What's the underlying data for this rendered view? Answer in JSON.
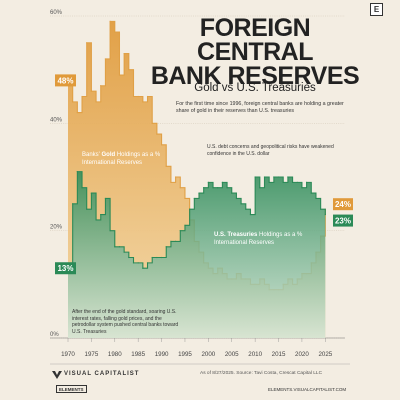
{
  "header": {
    "title_lines": [
      "FOREIGN CENTRAL",
      "BANK RESERVES"
    ],
    "subtitle": "Gold vs U.S. Treasuries",
    "intro": "For the first time since 1996, foreign central banks are holding a greater share of gold in their reserves than U.S. treasuries",
    "badge": "E"
  },
  "annotations": {
    "risk": "U.S. debt concerns and geopolitical risks have weakened confidence in the U.S. dollar",
    "gold_standard": "After the end of the gold standard, soaring U.S. interest rates, falling gold prices, and the petrodollar system pushed central banks toward U.S. Treasuries"
  },
  "series_labels": {
    "gold": "Banks' Gold Holdings as a % International Reserves",
    "gold_bold": "Gold",
    "ust": "U.S. Treasuries Holdings as a % International Reserves",
    "ust_bold": "U.S. Treasuries"
  },
  "footer": {
    "brand": "VISUAL CAPITALIST",
    "elements": "ELEMENTS",
    "elements_url": "ELEMENTS.VISUALCAPITALIST.COM",
    "source": "As of 8/27/2025. Source: Tavi Costa, Crescat Capital LLC"
  },
  "colors": {
    "background": "#f3ede2",
    "gold": "#e0a046",
    "gold_light": "#f2cd8c",
    "ust": "#2b8a57",
    "ust_light": "#b9d8c4",
    "text": "#222222"
  },
  "chart_data": {
    "type": "area",
    "x_ticks": [
      "1970",
      "1975",
      "1980",
      "1985",
      "1990",
      "1995",
      "2000",
      "2005",
      "2010",
      "2015",
      "2020",
      "2025"
    ],
    "y_ticks": [
      "0%",
      "20%",
      "40%",
      "60%"
    ],
    "xlim": [
      1970,
      2026
    ],
    "ylim": [
      0,
      60
    ],
    "grid": true,
    "series": [
      {
        "name": "Gold",
        "color": "#e0a046",
        "x": [
          1970,
          1971,
          1972,
          1973,
          1974,
          1975,
          1976,
          1977,
          1978,
          1979,
          1980,
          1981,
          1982,
          1983,
          1984,
          1985,
          1986,
          1987,
          1988,
          1989,
          1990,
          1991,
          1992,
          1993,
          1994,
          1995,
          1996,
          1997,
          1998,
          1999,
          2000,
          2001,
          2002,
          2003,
          2004,
          2005,
          2006,
          2007,
          2008,
          2009,
          2010,
          2011,
          2012,
          2013,
          2014,
          2015,
          2016,
          2017,
          2018,
          2019,
          2020,
          2021,
          2022,
          2023,
          2024,
          2025
        ],
        "values": [
          48,
          44,
          42,
          45,
          55,
          46,
          44,
          47,
          52,
          59,
          57,
          49,
          53,
          50,
          45,
          45,
          44,
          45,
          40,
          38,
          36,
          32,
          29,
          30,
          28,
          26,
          22,
          18,
          16,
          14,
          13,
          12,
          13,
          12,
          11,
          11,
          12,
          11,
          11,
          10,
          10,
          11,
          10,
          9,
          9,
          9,
          10,
          11,
          10,
          11,
          12,
          12,
          14,
          16,
          19,
          24
        ],
        "end_label": "24%",
        "start_label": "48%"
      },
      {
        "name": "U.S. Treasuries",
        "color": "#2b8a57",
        "x": [
          1970,
          1971,
          1972,
          1973,
          1974,
          1975,
          1976,
          1977,
          1978,
          1979,
          1980,
          1981,
          1982,
          1983,
          1984,
          1985,
          1986,
          1987,
          1988,
          1989,
          1990,
          1991,
          1992,
          1993,
          1994,
          1995,
          1996,
          1997,
          1998,
          1999,
          2000,
          2001,
          2002,
          2003,
          2004,
          2005,
          2006,
          2007,
          2008,
          2009,
          2010,
          2011,
          2012,
          2013,
          2014,
          2015,
          2016,
          2017,
          2018,
          2019,
          2020,
          2021,
          2022,
          2023,
          2024,
          2025
        ],
        "values": [
          13,
          25,
          31,
          28,
          24,
          27,
          22,
          23,
          26,
          20,
          17,
          17,
          16,
          15,
          14,
          14,
          13,
          14,
          15,
          15,
          15,
          17,
          18,
          18,
          20,
          21,
          24,
          26,
          27,
          28,
          29,
          28,
          28,
          29,
          28,
          27,
          26,
          25,
          24,
          23,
          30,
          28,
          30,
          29,
          30,
          30,
          29,
          30,
          29,
          29,
          28,
          29,
          27,
          26,
          24,
          23
        ],
        "end_label": "23%",
        "start_label": "13%"
      }
    ]
  }
}
